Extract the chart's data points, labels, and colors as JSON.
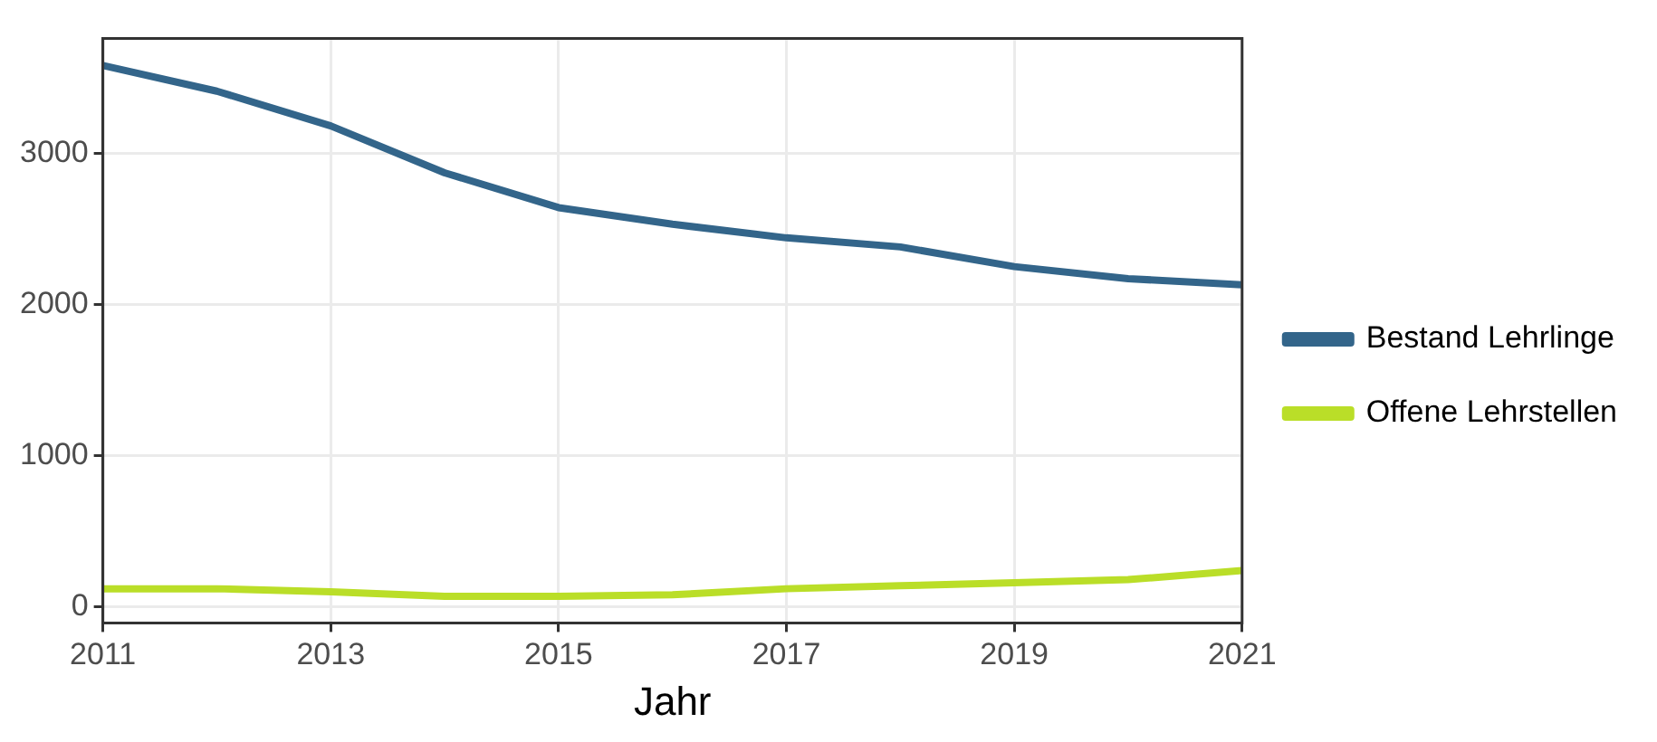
{
  "chart_data": {
    "type": "line",
    "xlabel": "Jahr",
    "x": [
      2011,
      2012,
      2013,
      2014,
      2015,
      2016,
      2017,
      2018,
      2019,
      2020,
      2021
    ],
    "series": [
      {
        "name": "Bestand Lehrlinge",
        "color": "#33658a",
        "values": [
          3580,
          3410,
          3180,
          2870,
          2640,
          2530,
          2440,
          2380,
          2250,
          2170,
          2130
        ]
      },
      {
        "name": "Offene Lehrstellen",
        "color": "#bade28",
        "values": [
          120,
          120,
          100,
          70,
          70,
          80,
          120,
          140,
          160,
          180,
          240
        ]
      }
    ],
    "xlim": [
      2011,
      2021
    ],
    "xticks": [
      2011,
      2013,
      2015,
      2017,
      2019,
      2021
    ],
    "ylim": [
      -106,
      3759
    ],
    "yticks": [
      0,
      1000,
      2000,
      3000
    ],
    "grid": true,
    "legend": "right",
    "marker": "none",
    "line_style": "solid"
  }
}
